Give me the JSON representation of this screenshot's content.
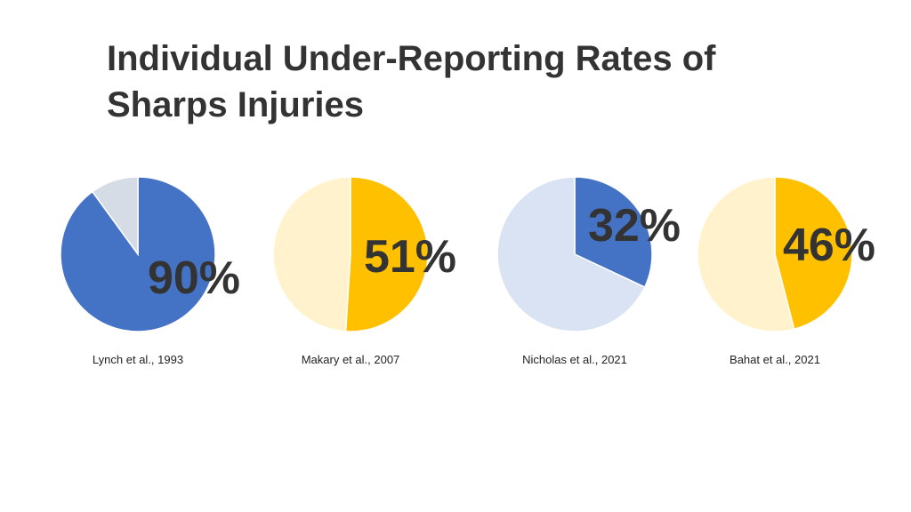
{
  "chart_data": {
    "type": "pie",
    "title_lines": [
      "Individual Under-Reporting Rates of",
      "Sharps Injuries"
    ],
    "charts": [
      {
        "caption": "Lynch et al., 1993",
        "value": 90,
        "label": "90%",
        "color": "#4472C4",
        "rest_color": "#D6DCE5"
      },
      {
        "caption": "Makary et al., 2007",
        "value": 51,
        "label": "51%",
        "color": "#FFC000",
        "rest_color": "#FFF2CC"
      },
      {
        "caption": "Nicholas et al., 2021",
        "value": 32,
        "label": "32%",
        "color": "#4472C4",
        "rest_color": "#DAE3F3"
      },
      {
        "caption": "Bahat et al., 2021",
        "value": 46,
        "label": "46%",
        "color": "#FFC000",
        "rest_color": "#FFF2CC"
      }
    ]
  }
}
